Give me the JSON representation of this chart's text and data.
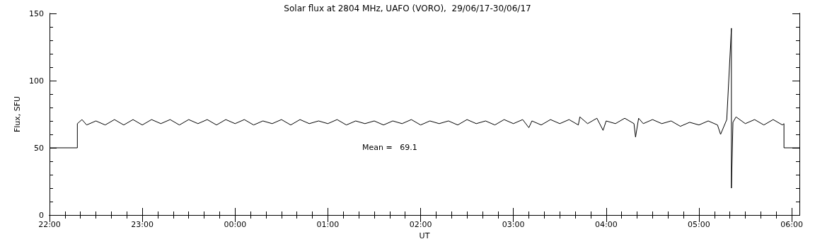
{
  "chart_data": {
    "type": "line",
    "title": "Solar flux at 2804 MHz, UAFO (VORO),  29/06/17-30/06/17",
    "xlabel": "UT",
    "ylabel": "Flux, SFU",
    "annotations": [
      "Mean =   69.1"
    ],
    "xlim": [
      "--06-29T22:00",
      "--06-30T06:05"
    ],
    "xticks": [
      {
        "value": "--06-29T22:00",
        "label": "22:00"
      },
      {
        "value": "--06-29T22:10",
        "label": null
      },
      {
        "value": "--06-29T22:20",
        "label": null
      },
      {
        "value": "--06-29T22:30",
        "label": null
      },
      {
        "value": "--06-29T22:40",
        "label": null
      },
      {
        "value": "--06-29T22:50",
        "label": null
      },
      {
        "value": "--06-29T23:00",
        "label": "23:00"
      },
      {
        "value": "--06-29T23:10",
        "label": null
      },
      {
        "value": "--06-29T23:20",
        "label": null
      },
      {
        "value": "--06-29T23:30",
        "label": null
      },
      {
        "value": "--06-29T23:40",
        "label": null
      },
      {
        "value": "--06-29T23:50",
        "label": null
      },
      {
        "value": "--06-30T00:00",
        "label": "00:00"
      },
      {
        "value": "--06-30T00:10",
        "label": null
      },
      {
        "value": "--06-30T00:20",
        "label": null
      },
      {
        "value": "--06-30T00:30",
        "label": null
      },
      {
        "value": "--06-30T00:40",
        "label": null
      },
      {
        "value": "--06-30T00:50",
        "label": null
      },
      {
        "value": "--06-30T01:00",
        "label": "01:00"
      },
      {
        "value": "--06-30T01:10",
        "label": null
      },
      {
        "value": "--06-30T01:20",
        "label": null
      },
      {
        "value": "--06-30T01:30",
        "label": null
      },
      {
        "value": "--06-30T01:40",
        "label": null
      },
      {
        "value": "--06-30T01:50",
        "label": null
      },
      {
        "value": "--06-30T02:00",
        "label": "02:00"
      },
      {
        "value": "--06-30T02:10",
        "label": null
      },
      {
        "value": "--06-30T02:20",
        "label": null
      },
      {
        "value": "--06-30T02:30",
        "label": null
      },
      {
        "value": "--06-30T02:40",
        "label": null
      },
      {
        "value": "--06-30T02:50",
        "label": null
      },
      {
        "value": "--06-30T03:00",
        "label": "03:00"
      },
      {
        "value": "--06-30T03:10",
        "label": null
      },
      {
        "value": "--06-30T03:20",
        "label": null
      },
      {
        "value": "--06-30T03:30",
        "label": null
      },
      {
        "value": "--06-30T03:40",
        "label": null
      },
      {
        "value": "--06-30T03:50",
        "label": null
      },
      {
        "value": "--06-30T04:00",
        "label": "04:00"
      },
      {
        "value": "--06-30T04:10",
        "label": null
      },
      {
        "value": "--06-30T04:20",
        "label": null
      },
      {
        "value": "--06-30T04:30",
        "label": null
      },
      {
        "value": "--06-30T04:40",
        "label": null
      },
      {
        "value": "--06-30T04:50",
        "label": null
      },
      {
        "value": "--06-30T05:00",
        "label": "05:00"
      },
      {
        "value": "--06-30T05:10",
        "label": null
      },
      {
        "value": "--06-30T05:20",
        "label": null
      },
      {
        "value": "--06-30T05:30",
        "label": null
      },
      {
        "value": "--06-30T05:40",
        "label": null
      },
      {
        "value": "--06-30T05:50",
        "label": null
      },
      {
        "value": "--06-30T06:00",
        "label": "06:00"
      }
    ],
    "ylim": [
      0,
      150
    ],
    "yticks": [
      0,
      {
        "value": 10,
        "label": null
      },
      {
        "value": 20,
        "label": null
      },
      {
        "value": 30,
        "label": null
      },
      {
        "value": 40,
        "label": null
      },
      50,
      {
        "value": 60,
        "label": null
      },
      {
        "value": 70,
        "label": null
      },
      {
        "value": 80,
        "label": null
      },
      {
        "value": 90,
        "label": null
      },
      100,
      {
        "value": 110,
        "label": null
      },
      {
        "value": 120,
        "label": null
      },
      {
        "value": 130,
        "label": null
      },
      {
        "value": 140,
        "label": null
      },
      150
    ],
    "grid": false,
    "marker": "none",
    "line_style": "solid",
    "series": [
      {
        "color": "#000000",
        "x": [
          "--06-29T22:00",
          "--06-29T22:18",
          "--06-29T22:18",
          "--06-29T22:21",
          "--06-29T22:24",
          "--06-29T22:30",
          "--06-29T22:36",
          "--06-29T22:42",
          "--06-29T22:48",
          "--06-29T22:54",
          "--06-29T23:00",
          "--06-29T23:06",
          "--06-29T23:12",
          "--06-29T23:18",
          "--06-29T23:24",
          "--06-29T23:30",
          "--06-29T23:36",
          "--06-29T23:42",
          "--06-29T23:48",
          "--06-29T23:54",
          "--06-30T00:00",
          "--06-30T00:06",
          "--06-30T00:12",
          "--06-30T00:18",
          "--06-30T00:24",
          "--06-30T00:30",
          "--06-30T00:36",
          "--06-30T00:42",
          "--06-30T00:48",
          "--06-30T00:54",
          "--06-30T01:00",
          "--06-30T01:06",
          "--06-30T01:12",
          "--06-30T01:18",
          "--06-30T01:24",
          "--06-30T01:30",
          "--06-30T01:36",
          "--06-30T01:42",
          "--06-30T01:48",
          "--06-30T01:54",
          "--06-30T02:00",
          "--06-30T02:06",
          "--06-30T02:12",
          "--06-30T02:18",
          "--06-30T02:24",
          "--06-30T02:30",
          "--06-30T02:36",
          "--06-30T02:42",
          "--06-30T02:48",
          "--06-30T02:54",
          "--06-30T03:00",
          "--06-30T03:06",
          "--06-30T03:10",
          "--06-30T03:12",
          "--06-30T03:18",
          "--06-30T03:24",
          "--06-30T03:30",
          "--06-30T03:36",
          "--06-30T03:42",
          "--06-30T03:43",
          "--06-30T03:48",
          "--06-30T03:54",
          "--06-30T03:58",
          "--06-30T04:00",
          "--06-30T04:06",
          "--06-30T04:12",
          "--06-30T04:18",
          "--06-30T04:19",
          "--06-30T04:21",
          "--06-30T04:24",
          "--06-30T04:30",
          "--06-30T04:36",
          "--06-30T04:42",
          "--06-30T04:48",
          "--06-30T04:54",
          "--06-30T05:00",
          "--06-30T05:06",
          "--06-30T05:12",
          "--06-30T05:14",
          "--06-30T05:18",
          "--06-30T05:21",
          "--06-30T05:21",
          "--06-30T05:22",
          "--06-30T05:24",
          "--06-30T05:30",
          "--06-30T05:36",
          "--06-30T05:42",
          "--06-30T05:48",
          "--06-30T05:54",
          "--06-30T05:55",
          "--06-30T05:55",
          "--06-30T06:05"
        ],
        "values": [
          50,
          50,
          68,
          71,
          67,
          70,
          67,
          71,
          67,
          71,
          67,
          71,
          68,
          71,
          67,
          71,
          68,
          71,
          67,
          71,
          68,
          71,
          67,
          70,
          68,
          71,
          67,
          71,
          68,
          70,
          68,
          71,
          67,
          70,
          68,
          70,
          67,
          70,
          68,
          71,
          67,
          70,
          68,
          70,
          67,
          71,
          68,
          70,
          67,
          71,
          68,
          71,
          65,
          70,
          67,
          71,
          68,
          71,
          67,
          73,
          68,
          72,
          63,
          70,
          68,
          72,
          68,
          58,
          72,
          68,
          71,
          68,
          70,
          66,
          69,
          67,
          70,
          67,
          60,
          71,
          139,
          20,
          69,
          73,
          68,
          71,
          67,
          71,
          67,
          68,
          50,
          50
        ]
      }
    ]
  }
}
